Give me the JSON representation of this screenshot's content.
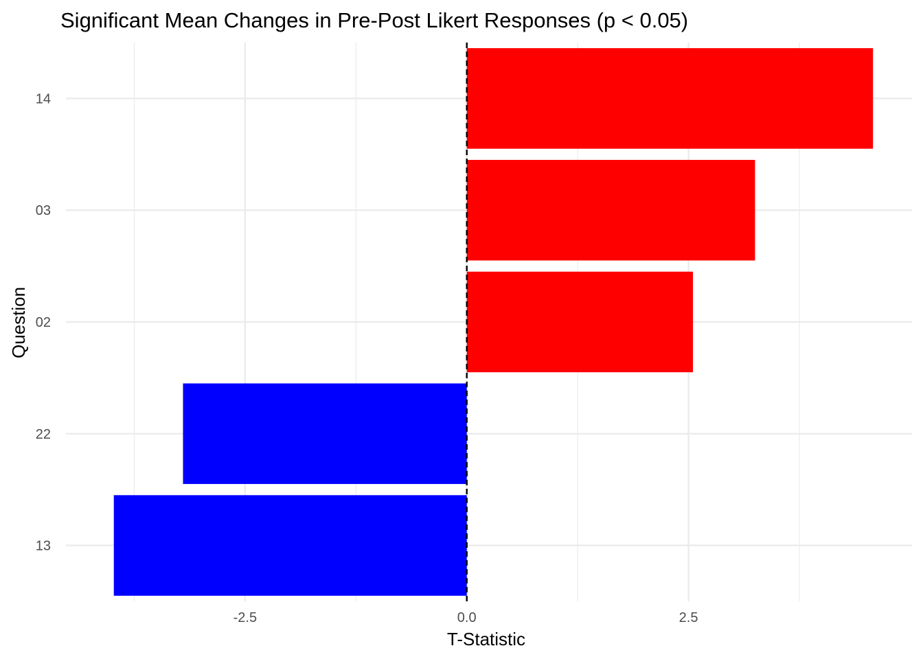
{
  "chart_data": {
    "type": "bar",
    "orientation": "horizontal",
    "title": "Significant Mean Changes in Pre-Post Likert Responses (p < 0.05)",
    "xlabel": "T-Statistic",
    "ylabel": "Question",
    "categories": [
      "14",
      "03",
      "02",
      "22",
      "13"
    ],
    "values": [
      4.58,
      3.25,
      2.55,
      -3.2,
      -3.98
    ],
    "bar_colors": [
      "#ff0000",
      "#ff0000",
      "#ff0000",
      "#0000ff",
      "#0000ff"
    ],
    "x_ticks": [
      {
        "value": -2.5,
        "label": "-2.5"
      },
      {
        "value": 0,
        "label": "0.0"
      },
      {
        "value": 2.5,
        "label": "2.5"
      }
    ],
    "x_minor_ticks": [
      -3.75,
      -1.25,
      1.25,
      3.75
    ],
    "xlim": [
      -4.52,
      5.02
    ],
    "reference_line": {
      "x": 0,
      "style": "dashed",
      "color": "#000000"
    },
    "grid": true,
    "gridline_color": "#ebebeb",
    "legend": "none"
  }
}
